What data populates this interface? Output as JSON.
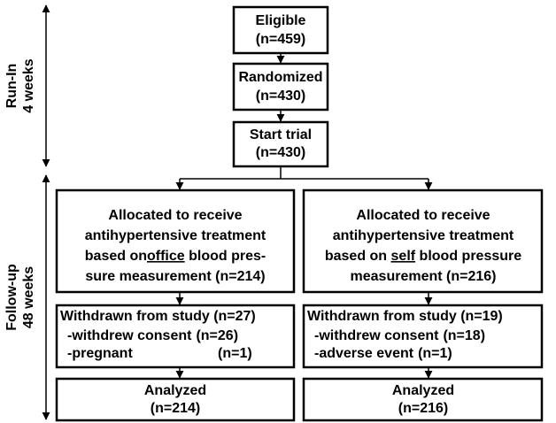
{
  "phases": [
    {
      "label": "Run-In",
      "duration": "4 weeks"
    },
    {
      "label": "Follow-up",
      "duration": "48 weeks"
    }
  ],
  "nodes": [
    {
      "label": "Eligible",
      "count": "(n=459)"
    },
    {
      "label": "Randomized",
      "count": "(n=430)"
    },
    {
      "label": "Start trial",
      "count": "(n=430)"
    }
  ],
  "arms": [
    {
      "allocation": {
        "lines": [
          "Allocated to receive",
          "antihypertensive treatment"
        ],
        "basis_prefix": "based on",
        "basis": "office",
        "basis_suffix": " blood pres-",
        "last_line": "sure measurement (n=214)"
      },
      "withdrawn": {
        "title": "Withdrawn from study (n=27)",
        "reasons": [
          {
            "reason": "-withdrew consent",
            "count": "(n=26)"
          },
          {
            "reason": "-pregnant",
            "count": "(n=1)"
          }
        ]
      },
      "analyzed": {
        "label": "Analyzed",
        "count": "(n=214)"
      }
    },
    {
      "allocation": {
        "lines": [
          "Allocated to receive",
          "antihypertensive treatment"
        ],
        "basis_prefix": "based on ",
        "basis": "self",
        "basis_suffix": " blood pressure",
        "last_line": "measurement (n=216)"
      },
      "withdrawn": {
        "title": "Withdrawn from study (n=19)",
        "reasons": [
          {
            "reason": "-withdrew consent",
            "count": "(n=18)"
          },
          {
            "reason": "-adverse event",
            "count": "(n=1)"
          }
        ]
      },
      "analyzed": {
        "label": "Analyzed",
        "count": "(n=216)"
      }
    }
  ]
}
